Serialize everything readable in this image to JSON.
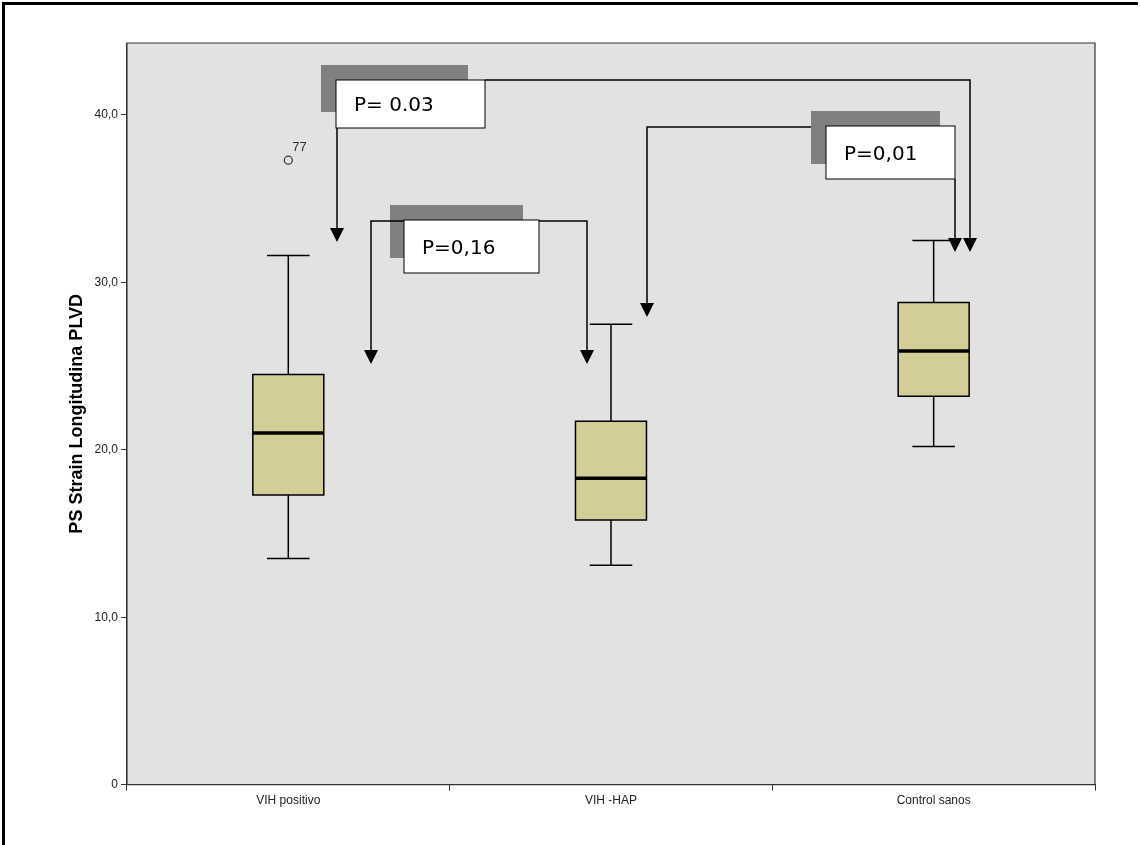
{
  "chart_data": {
    "type": "box",
    "categories": [
      "VIH positivo",
      "VIH -HAP",
      "Control sanos"
    ],
    "boxes": [
      {
        "low": 13.5,
        "q1": 17.3,
        "median": 21.0,
        "q3": 24.5,
        "high": 31.6,
        "outliers": [
          37.3
        ]
      },
      {
        "low": 13.1,
        "q1": 15.8,
        "median": 18.3,
        "q3": 21.7,
        "high": 27.5
      },
      {
        "low": 20.2,
        "q1": 23.2,
        "median": 25.9,
        "q3": 28.8,
        "high": 32.5
      }
    ],
    "color": "#d3ce98",
    "ylabel": "PS Strain Longitudina PLVD",
    "ylim": [
      0,
      44.3
    ],
    "yticks": [
      0,
      {
        "value": 10,
        "label": "10,0"
      },
      {
        "value": 20,
        "label": "20,0"
      },
      {
        "value": 30,
        "label": "30,0"
      },
      {
        "value": 40,
        "label": "40,0"
      }
    ],
    "annotations": [
      "P= 0.03",
      "P=0,16",
      "P=0,01",
      "77"
    ]
  }
}
